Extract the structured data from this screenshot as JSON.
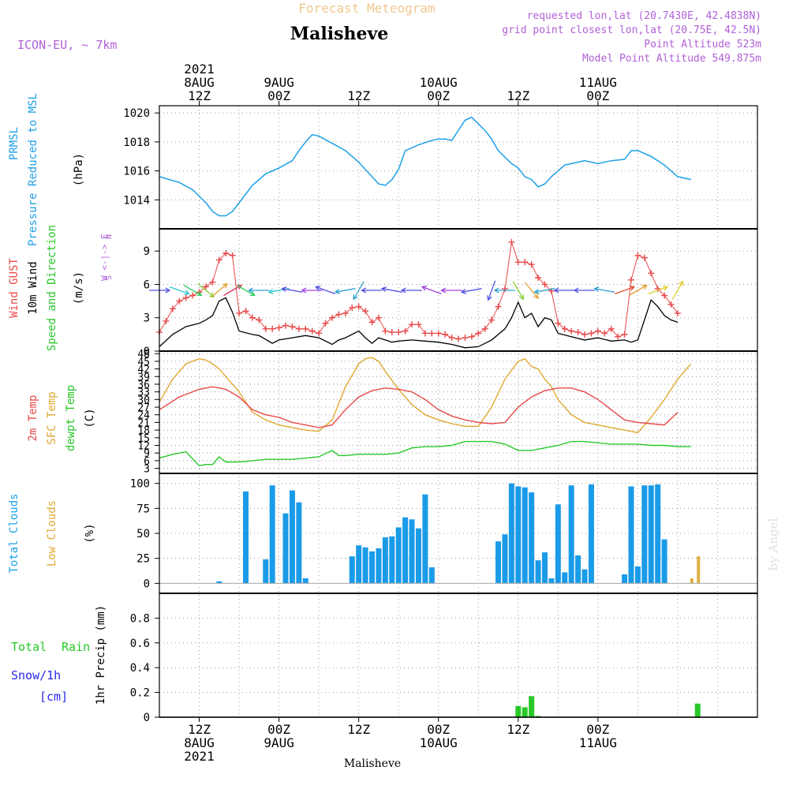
{
  "header": {
    "supertitle": "Forecast Meteogram",
    "location": "Malisheve",
    "model": "ICON-EU, ~ 7km",
    "requested": "requested lon,lat (20.7430E, 42.4838N)",
    "gridpoint": "grid point closest lon,lat (20.75E, 42.5N)",
    "point_alt": "Point Altitude 523m",
    "model_alt": "Model Point Altitude 549.875m",
    "footer": "Malisheve",
    "watermark": "by Angel"
  },
  "time_axis": {
    "hours_start": -6,
    "hours_end": 84,
    "top_labels": [
      {
        "h": 0,
        "lines": [
          "2021",
          "8AUG",
          "12Z"
        ]
      },
      {
        "h": 12,
        "lines": [
          "9AUG",
          "00Z"
        ]
      },
      {
        "h": 24,
        "lines": [
          "12Z"
        ]
      },
      {
        "h": 36,
        "lines": [
          "10AUG",
          "00Z"
        ]
      },
      {
        "h": 48,
        "lines": [
          "12Z"
        ]
      },
      {
        "h": 60,
        "lines": [
          "11AUG",
          "00Z"
        ]
      }
    ],
    "bottom_labels": [
      {
        "h": 0,
        "lines": [
          "12Z",
          "8AUG",
          "2021"
        ]
      },
      {
        "h": 12,
        "lines": [
          "00Z",
          "9AUG"
        ]
      },
      {
        "h": 24,
        "lines": [
          "12Z"
        ]
      },
      {
        "h": 36,
        "lines": [
          "00Z",
          "10AUG"
        ]
      },
      {
        "h": 48,
        "lines": [
          "12Z"
        ]
      },
      {
        "h": 60,
        "lines": [
          "00Z",
          "11AUG"
        ]
      }
    ]
  },
  "panels": {
    "pressure": {
      "labels": [
        "PRMSL",
        "Pressure Reduced to MSL",
        "(hPa)"
      ],
      "ticks": [
        1014,
        1016,
        1018,
        1020
      ]
    },
    "wind": {
      "labels": [
        "Wind GUST",
        "10m Wind",
        "Speed and Direction",
        "(m/s)"
      ],
      "ticks": [
        0,
        3,
        6,
        9
      ],
      "compass": "W <-|-> E",
      "compass_n": "N",
      "compass_s": "S"
    },
    "temp": {
      "labels": [
        "2m Temp",
        "SFC Temp",
        "dewpt Temp",
        "(C)"
      ],
      "ticks": [
        3,
        6,
        9,
        12,
        15,
        18,
        21,
        24,
        27,
        30,
        33,
        36,
        39,
        42,
        45,
        48
      ]
    },
    "clouds": {
      "labels": [
        "Total Clouds",
        "Low Clouds",
        "(%)"
      ],
      "ticks": [
        0,
        25,
        50,
        75,
        100
      ]
    },
    "precip": {
      "labels": [
        "Total",
        "Rain",
        "Snow/1h",
        "[cm]",
        "1hr Precip (mm)"
      ],
      "ticks": [
        "0",
        "0.2",
        "0.4",
        "0.6",
        "0.8"
      ]
    }
  },
  "colors": {
    "pressure": "#1ea0e6",
    "gust": "#e84848",
    "wind": "#000000",
    "t2m": "#e84848",
    "sfc": "#e0a830",
    "dewpt": "#28c828",
    "clouds": "#1a9be8",
    "low_clouds": "#e0b040",
    "rain": "#28c828",
    "snow": "#2828e6",
    "purple": "#b060d8",
    "title": "#f0c890"
  },
  "chart_data": {
    "type": "line",
    "x_unit": "hours from 8AUG 12Z",
    "pressure": {
      "name": "PRMSL",
      "x": [
        -6,
        -3,
        -1,
        1,
        2,
        3,
        4,
        5,
        6,
        8,
        10,
        12,
        14,
        15,
        16,
        17,
        18,
        20,
        22,
        24,
        25,
        26,
        27,
        28,
        29,
        30,
        31,
        33,
        35,
        36,
        37,
        38,
        40,
        41,
        43,
        44,
        45,
        47,
        48,
        49,
        50,
        51,
        52,
        53,
        55,
        56,
        58,
        60,
        62,
        64,
        65,
        66,
        68,
        70,
        71,
        72,
        74
      ],
      "y": [
        1015.6,
        1015.2,
        1014.7,
        1013.8,
        1013.2,
        1012.9,
        1012.9,
        1013.2,
        1013.8,
        1015,
        1015.8,
        1016.2,
        1016.7,
        1017.4,
        1018,
        1018.5,
        1018.4,
        1017.9,
        1017.4,
        1016.6,
        1016.1,
        1015.6,
        1015.1,
        1015.0,
        1015.4,
        1016.1,
        1017.4,
        1017.8,
        1018.1,
        1018.2,
        1018.2,
        1018.1,
        1019.5,
        1019.7,
        1018.8,
        1018.2,
        1017.4,
        1016.5,
        1016.2,
        1015.6,
        1015.4,
        1014.9,
        1015.1,
        1015.6,
        1016.4,
        1016.5,
        1016.7,
        1016.5,
        1016.7,
        1016.8,
        1017.4,
        1017.4,
        1017.0,
        1016.4,
        1016.0,
        1015.6,
        1015.4
      ]
    },
    "wind_speed": {
      "name": "10m Wind",
      "x": [
        -6,
        -4,
        -2,
        0,
        1,
        2,
        3,
        4,
        5,
        6,
        8,
        9,
        11,
        12,
        14,
        16,
        18,
        20,
        21,
        22,
        24,
        25,
        26,
        27,
        28,
        29,
        30,
        32,
        34,
        36,
        38,
        40,
        42,
        44,
        46,
        47,
        48,
        49,
        50,
        51,
        52,
        53,
        54,
        56,
        58,
        60,
        62,
        64,
        65,
        66,
        67,
        68,
        69,
        70,
        71,
        72
      ],
      "y": [
        0.4,
        1.5,
        2.2,
        2.5,
        2.8,
        3.2,
        4.5,
        4.8,
        3.5,
        1.8,
        1.5,
        1.4,
        0.7,
        1.0,
        1.2,
        1.4,
        1.2,
        0.6,
        1.0,
        1.2,
        1.8,
        1.2,
        0.7,
        1.2,
        1.0,
        0.8,
        0.9,
        1.0,
        0.9,
        0.8,
        0.6,
        0.3,
        0.4,
        1.0,
        2.0,
        3.0,
        4.4,
        3.0,
        3.4,
        2.2,
        3.0,
        2.8,
        1.6,
        1.3,
        1.0,
        1.2,
        0.9,
        1.0,
        0.8,
        1.0,
        2.8,
        4.6,
        4.0,
        3.2,
        2.8,
        2.6
      ]
    },
    "wind_gust": {
      "name": "Wind GUST",
      "x": [
        -6,
        -5,
        -4,
        -3,
        -2,
        -1,
        0,
        1,
        2,
        3,
        4,
        5,
        6,
        7,
        8,
        9,
        10,
        11,
        12,
        13,
        14,
        15,
        16,
        17,
        18,
        19,
        20,
        21,
        22,
        23,
        24,
        25,
        26,
        27,
        28,
        29,
        30,
        31,
        32,
        33,
        34,
        35,
        36,
        37,
        38,
        39,
        40,
        41,
        42,
        43,
        44,
        45,
        46,
        47,
        48,
        49,
        50,
        51,
        52,
        53,
        54,
        55,
        56,
        57,
        58,
        59,
        60,
        61,
        62,
        63,
        64,
        65,
        66,
        67,
        68,
        69,
        70,
        71,
        72
      ],
      "y": [
        1.7,
        2.7,
        3.8,
        4.5,
        4.8,
        5.0,
        5.3,
        5.8,
        6.2,
        8.2,
        8.8,
        8.6,
        3.4,
        3.6,
        3.0,
        2.8,
        2.0,
        2.0,
        2.1,
        2.3,
        2.2,
        2.0,
        2.0,
        1.8,
        1.6,
        2.5,
        3.0,
        3.3,
        3.4,
        3.9,
        4.0,
        3.6,
        2.6,
        3.0,
        1.8,
        1.7,
        1.7,
        1.8,
        2.4,
        2.4,
        1.6,
        1.6,
        1.6,
        1.5,
        1.2,
        1.1,
        1.2,
        1.3,
        1.6,
        2.0,
        2.8,
        4.0,
        5.6,
        9.8,
        8.0,
        8.0,
        7.8,
        6.6,
        6.0,
        5.4,
        2.5,
        2.0,
        1.8,
        1.7,
        1.5,
        1.6,
        1.8,
        1.6,
        2.0,
        1.3,
        1.5,
        6.4,
        8.6,
        8.4,
        7.0,
        5.6,
        5.0,
        4.2,
        3.4
      ]
    },
    "wind_arrows": [
      {
        "h": -6,
        "from": 270,
        "color": "#5050e0"
      },
      {
        "h": -3,
        "from": 290,
        "color": "#30c8c8"
      },
      {
        "h": -1,
        "from": 300,
        "color": "#30d060"
      },
      {
        "h": 1,
        "from": 310,
        "color": "#80d030"
      },
      {
        "h": 3,
        "from": 230,
        "color": "#e0a030"
      },
      {
        "h": 5,
        "from": 240,
        "color": "#e03060"
      },
      {
        "h": 7,
        "from": 300,
        "color": "#30d060"
      },
      {
        "h": 9,
        "from": 90,
        "color": "#30a0d0"
      },
      {
        "h": 12,
        "from": 80,
        "color": "#30c8c8"
      },
      {
        "h": 14,
        "from": 100,
        "color": "#5050e0"
      },
      {
        "h": 17,
        "from": 90,
        "color": "#a040e0"
      },
      {
        "h": 19,
        "from": 110,
        "color": "#5050e0"
      },
      {
        "h": 22,
        "from": 80,
        "color": "#30a0d0"
      },
      {
        "h": 24,
        "from": 30,
        "color": "#30a0d0"
      },
      {
        "h": 26,
        "from": 90,
        "color": "#5050e0"
      },
      {
        "h": 29,
        "from": 100,
        "color": "#5050e0"
      },
      {
        "h": 32,
        "from": 90,
        "color": "#5050e0"
      },
      {
        "h": 35,
        "from": 110,
        "color": "#a040e0"
      },
      {
        "h": 38,
        "from": 90,
        "color": "#a040e0"
      },
      {
        "h": 41,
        "from": 80,
        "color": "#5050e0"
      },
      {
        "h": 44,
        "from": 20,
        "color": "#5050e0"
      },
      {
        "h": 46,
        "from": 90,
        "color": "#30a0d0"
      },
      {
        "h": 48,
        "from": 330,
        "color": "#80d030"
      },
      {
        "h": 50,
        "from": 320,
        "color": "#e0a030"
      },
      {
        "h": 52,
        "from": 80,
        "color": "#30a0d0"
      },
      {
        "h": 55,
        "from": 90,
        "color": "#5050e0"
      },
      {
        "h": 58,
        "from": 90,
        "color": "#5050e0"
      },
      {
        "h": 61,
        "from": 100,
        "color": "#30a0d0"
      },
      {
        "h": 64,
        "from": 250,
        "color": "#e05030"
      },
      {
        "h": 66,
        "from": 240,
        "color": "#e0a030"
      },
      {
        "h": 69,
        "from": 250,
        "color": "#e0d030"
      },
      {
        "h": 72,
        "from": 210,
        "color": "#e0d030"
      }
    ],
    "t2m": {
      "name": "2m Temp",
      "x": [
        -6,
        -3,
        0,
        2,
        4,
        6,
        8,
        10,
        12,
        14,
        16,
        18,
        20,
        22,
        24,
        26,
        28,
        30,
        32,
        34,
        36,
        38,
        40,
        42,
        44,
        46,
        48,
        50,
        52,
        54,
        56,
        58,
        60,
        62,
        64,
        66,
        68,
        70,
        72
      ],
      "y": [
        26,
        31,
        34,
        35,
        34,
        31,
        26,
        24,
        23,
        21,
        20,
        19,
        20,
        26,
        31,
        33.5,
        34.5,
        34,
        33,
        30,
        26,
        23.5,
        22,
        21,
        20.5,
        21,
        27,
        31,
        33.5,
        34.5,
        34.5,
        33,
        30,
        26,
        22,
        21,
        20.5,
        20,
        25
      ]
    },
    "sfc_temp": {
      "name": "SFC Temp",
      "x": [
        -6,
        -4,
        -2,
        0,
        1,
        2,
        3,
        4,
        6,
        8,
        10,
        12,
        14,
        16,
        18,
        20,
        22,
        24,
        25,
        26,
        27,
        28,
        30,
        32,
        34,
        36,
        38,
        40,
        42,
        44,
        46,
        48,
        49,
        50,
        51,
        52,
        53,
        54,
        56,
        58,
        60,
        62,
        64,
        66,
        68,
        70,
        72,
        74
      ],
      "y": [
        29,
        38,
        44,
        46,
        45.5,
        44,
        42,
        39,
        33,
        25,
        22,
        20,
        19,
        18,
        17.5,
        22,
        35,
        44,
        46,
        46.5,
        45,
        41,
        34,
        28,
        24,
        22,
        20.5,
        19.5,
        19.5,
        27,
        38,
        45,
        46,
        43,
        42,
        38,
        35,
        30,
        24,
        21,
        20,
        19,
        18,
        17,
        23,
        30,
        38,
        44
      ]
    },
    "dewpt": {
      "name": "dewpt Temp",
      "x": [
        -6,
        -4,
        -2,
        0,
        1,
        2,
        3,
        4,
        6,
        8,
        10,
        12,
        14,
        16,
        18,
        20,
        21,
        22,
        24,
        26,
        28,
        30,
        32,
        34,
        36,
        38,
        40,
        42,
        44,
        46,
        48,
        50,
        52,
        54,
        56,
        58,
        60,
        62,
        64,
        66,
        68,
        70,
        72,
        74
      ],
      "y": [
        7,
        8.5,
        9.5,
        4,
        4.5,
        4.5,
        7.5,
        5.5,
        5.5,
        6,
        6.5,
        6.5,
        6.5,
        7,
        7.5,
        10,
        8,
        8,
        8.5,
        8.5,
        8.5,
        9,
        11,
        11.5,
        11.5,
        12,
        13.5,
        13.5,
        13.5,
        12.5,
        10,
        10,
        11,
        12,
        13.5,
        13.5,
        13,
        12.5,
        12.5,
        12.5,
        12,
        12,
        11.5,
        11.5
      ]
    },
    "total_clouds": {
      "name": "Total Clouds",
      "x": [
        -3,
        0,
        3,
        5,
        7,
        9,
        10,
        11,
        12,
        13,
        14,
        15,
        16,
        17,
        18,
        19,
        20,
        21,
        22,
        23,
        24,
        25,
        26,
        27,
        28,
        29,
        30,
        31,
        32,
        33,
        34,
        35,
        36,
        37,
        38,
        39,
        40,
        41,
        42,
        43,
        44,
        45,
        46,
        47,
        48,
        49,
        50,
        51,
        52,
        53,
        54,
        55,
        56,
        57,
        58,
        59,
        60,
        61,
        62,
        63,
        64,
        65,
        66,
        67,
        68,
        69,
        70,
        71,
        72,
        73,
        74,
        75
      ],
      "y": [
        0,
        0,
        2,
        0,
        92,
        0,
        24,
        98,
        0,
        70,
        93,
        81,
        5,
        0,
        0,
        0,
        0,
        0,
        0,
        27,
        38,
        36,
        32,
        35,
        46,
        47,
        56,
        66,
        64,
        55,
        89,
        16,
        0,
        0,
        0,
        0,
        0,
        0,
        0,
        0,
        0,
        42,
        49,
        100,
        97,
        96,
        91,
        23,
        31,
        5,
        79,
        11,
        98,
        28,
        14,
        99,
        0,
        0,
        0,
        0,
        9,
        97,
        17,
        98,
        98,
        99,
        44,
        0,
        0,
        0,
        0,
        0
      ]
    },
    "low_clouds": {
      "name": "Low Clouds",
      "x": [
        74,
        75
      ],
      "y": [
        5,
        27
      ]
    },
    "rain": {
      "name": "Total Rain",
      "x": [
        48,
        49,
        50,
        51,
        75
      ],
      "y": [
        0.09,
        0.08,
        0.17,
        0.01,
        0.11
      ]
    },
    "ranges": {
      "pressure": [
        1012,
        1020.5
      ],
      "wind": [
        0,
        11
      ],
      "temp": [
        1,
        49
      ],
      "clouds": [
        -10,
        110
      ],
      "precip": [
        0,
        1
      ]
    }
  }
}
